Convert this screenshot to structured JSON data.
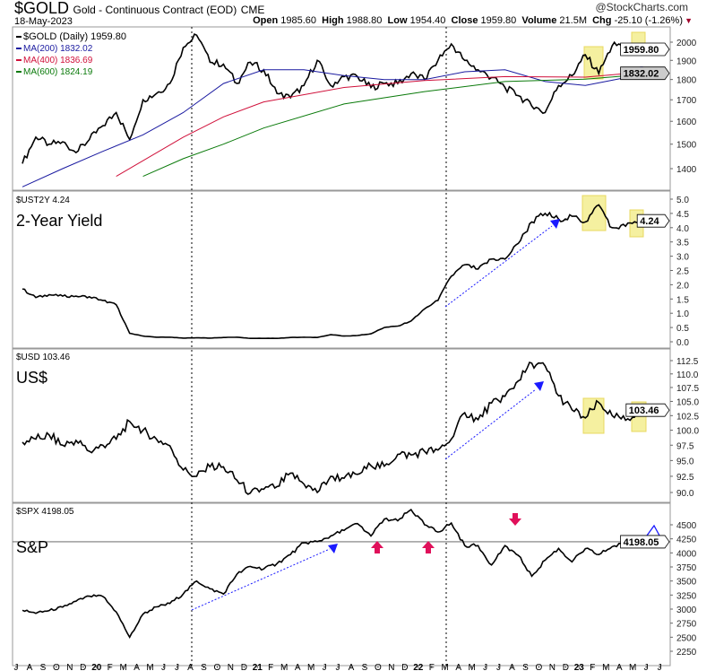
{
  "header": {
    "symbol": "$GOLD",
    "description": "Gold - Continuous Contract (EOD)",
    "exchange": "CME",
    "watermark": "@StockCharts.com",
    "date": "18-May-2023",
    "quote": {
      "open_label": "Open",
      "open": "1985.60",
      "high_label": "High",
      "high": "1988.80",
      "low_label": "Low",
      "low": "1954.40",
      "close_label": "Close",
      "close": "1959.80",
      "volume_label": "Volume",
      "volume": "21.5M",
      "chg_label": "Chg",
      "chg": "-25.10 (-1.26%)"
    },
    "down_color": "#a0002a"
  },
  "x_axis_labels": [
    "J",
    "A",
    "S",
    "O",
    "N",
    "D",
    "20",
    "F",
    "M",
    "A",
    "M",
    "J",
    "J",
    "A",
    "S",
    "O",
    "N",
    "D",
    "21",
    "F",
    "M",
    "A",
    "M",
    "J",
    "J",
    "A",
    "S",
    "O",
    "N",
    "D",
    "22",
    "F",
    "M",
    "A",
    "M",
    "J",
    "J",
    "A",
    "S",
    "O",
    "N",
    "D",
    "23",
    "F",
    "M",
    "A",
    "M",
    "J",
    "J"
  ],
  "chart_data": [
    {
      "type": "line",
      "panel": "gold",
      "legend": [
        "$GOLD (Daily) 1959.80",
        "MA(200) 1832.02",
        "MA(400) 1836.69",
        "MA(600) 1824.19"
      ],
      "y_scale": "log",
      "ylim": [
        1350,
        2100
      ],
      "yticks": [
        1400,
        1500,
        1600,
        1700,
        1800,
        1900,
        2000
      ],
      "last_value_tag": "1959.80",
      "ma_tag": "1832.02",
      "x": [
        "2019-07",
        "2019-08",
        "2019-09",
        "2019-10",
        "2019-11",
        "2019-12",
        "2020-01",
        "2020-02",
        "2020-03",
        "2020-04",
        "2020-05",
        "2020-06",
        "2020-07",
        "2020-08",
        "2020-09",
        "2020-10",
        "2020-11",
        "2020-12",
        "2021-01",
        "2021-02",
        "2021-03",
        "2021-04",
        "2021-05",
        "2021-06",
        "2021-07",
        "2021-08",
        "2021-09",
        "2021-10",
        "2021-11",
        "2021-12",
        "2022-01",
        "2022-02",
        "2022-03",
        "2022-04",
        "2022-05",
        "2022-06",
        "2022-07",
        "2022-08",
        "2022-09",
        "2022-10",
        "2022-11",
        "2022-12",
        "2023-01",
        "2023-02",
        "2023-03",
        "2023-04",
        "2023-05"
      ],
      "series": [
        {
          "name": "$GOLD (Daily)",
          "color": "#000000",
          "values": [
            1420,
            1530,
            1500,
            1510,
            1465,
            1520,
            1580,
            1640,
            1520,
            1700,
            1730,
            1780,
            1970,
            2040,
            1890,
            1880,
            1780,
            1890,
            1850,
            1730,
            1710,
            1770,
            1900,
            1770,
            1815,
            1815,
            1760,
            1780,
            1780,
            1830,
            1800,
            1900,
            1990,
            1900,
            1850,
            1810,
            1760,
            1720,
            1670,
            1640,
            1770,
            1820,
            1930,
            1830,
            1980,
            1990,
            1960
          ]
        },
        {
          "name": "MA(200)",
          "color": "#1a1aa0",
          "x": [
            "2019-07",
            "2019-10",
            "2020-01",
            "2020-04",
            "2020-07",
            "2020-10",
            "2021-01",
            "2021-04",
            "2021-07",
            "2021-10",
            "2022-01",
            "2022-04",
            "2022-07",
            "2022-10",
            "2023-01",
            "2023-04",
            "2023-05"
          ],
          "values": [
            1330,
            1400,
            1470,
            1540,
            1640,
            1780,
            1850,
            1850,
            1820,
            1800,
            1800,
            1840,
            1850,
            1790,
            1770,
            1810,
            1832.02
          ]
        },
        {
          "name": "MA(400)",
          "color": "#d0103a",
          "x": [
            "2020-02",
            "2020-07",
            "2020-10",
            "2021-01",
            "2021-07",
            "2022-01",
            "2022-07",
            "2023-01",
            "2023-05"
          ],
          "values": [
            1370,
            1530,
            1620,
            1690,
            1760,
            1795,
            1815,
            1812,
            1836.69
          ]
        },
        {
          "name": "MA(600)",
          "color": "#0a7a0a",
          "x": [
            "2020-04",
            "2020-07",
            "2020-10",
            "2021-01",
            "2021-07",
            "2022-01",
            "2022-07",
            "2023-01",
            "2023-05"
          ],
          "values": [
            1370,
            1440,
            1500,
            1570,
            1680,
            1740,
            1790,
            1802,
            1824.19
          ]
        }
      ]
    },
    {
      "type": "line",
      "panel": "yield",
      "legend": "$UST2Y 4.24",
      "label": "2-Year Yield",
      "ylim": [
        -0.2,
        5.3
      ],
      "yticks": [
        "0.0",
        "0.5",
        "1.0",
        "1.5",
        "2.0",
        "2.5",
        "3.0",
        "3.5",
        "4.0",
        "4.5",
        "5.0"
      ],
      "last_value_tag": "4.24",
      "series": [
        {
          "color": "#000000",
          "values": [
            1.85,
            1.55,
            1.65,
            1.6,
            1.6,
            1.58,
            1.45,
            1.3,
            0.3,
            0.2,
            0.16,
            0.16,
            0.13,
            0.14,
            0.13,
            0.15,
            0.16,
            0.12,
            0.12,
            0.12,
            0.15,
            0.16,
            0.15,
            0.25,
            0.2,
            0.22,
            0.28,
            0.5,
            0.55,
            0.73,
            1.15,
            1.45,
            2.3,
            2.7,
            2.55,
            2.9,
            2.9,
            3.45,
            4.2,
            4.5,
            4.3,
            4.4,
            4.2,
            4.8,
            4.0,
            4.05,
            4.24
          ]
        }
      ]
    },
    {
      "type": "line",
      "panel": "usd",
      "legend": "$USD 103.46",
      "label": "US$",
      "y_scale": "log",
      "ylim": [
        88.5,
        114.5
      ],
      "yticks": [
        "90.0",
        "92.5",
        "95.0",
        "97.5",
        "100.0",
        "102.5",
        "105.0",
        "107.5",
        "110.0",
        "112.5"
      ],
      "last_value_tag": "103.46",
      "series": [
        {
          "color": "#000000",
          "values": [
            98.0,
            98.5,
            99.2,
            97.5,
            98.3,
            96.5,
            97.5,
            98.5,
            101.5,
            100.0,
            98.5,
            97.4,
            93.5,
            92.5,
            94.0,
            94.0,
            91.9,
            89.9,
            90.5,
            90.9,
            93.0,
            91.3,
            90.0,
            92.5,
            92.2,
            92.8,
            94.2,
            94.1,
            96.0,
            95.9,
            96.5,
            96.7,
            98.5,
            103.0,
            101.8,
            104.7,
            105.9,
            108.7,
            112.0,
            111.5,
            106.0,
            103.5,
            102.1,
            104.8,
            102.5,
            101.7,
            103.46
          ]
        }
      ]
    },
    {
      "type": "line",
      "panel": "spx",
      "legend": "$SPX 4198.05",
      "label": "S&P",
      "ylim": [
        2150,
        4850
      ],
      "yticks": [
        2250,
        2500,
        2750,
        3000,
        3250,
        3500,
        3750,
        4000,
        4250,
        4500
      ],
      "last_value_tag": "4198.05",
      "series": [
        {
          "color": "#000000",
          "values": [
            2980,
            2925,
            2975,
            3035,
            3140,
            3230,
            3225,
            2950,
            2500,
            2910,
            3040,
            3100,
            3270,
            3500,
            3360,
            3270,
            3620,
            3760,
            3715,
            3810,
            3970,
            4180,
            4200,
            4300,
            4400,
            4520,
            4300,
            4600,
            4570,
            4770,
            4500,
            4370,
            4530,
            4130,
            4130,
            3785,
            4130,
            3955,
            3585,
            3870,
            4080,
            3840,
            4075,
            3970,
            4110,
            4170,
            4198.05
          ]
        }
      ]
    }
  ],
  "colors": {
    "highlight": "#f5f0a0",
    "annotation": "#1a1aff",
    "marker_red": "#e0105a",
    "grid": "#888888"
  }
}
